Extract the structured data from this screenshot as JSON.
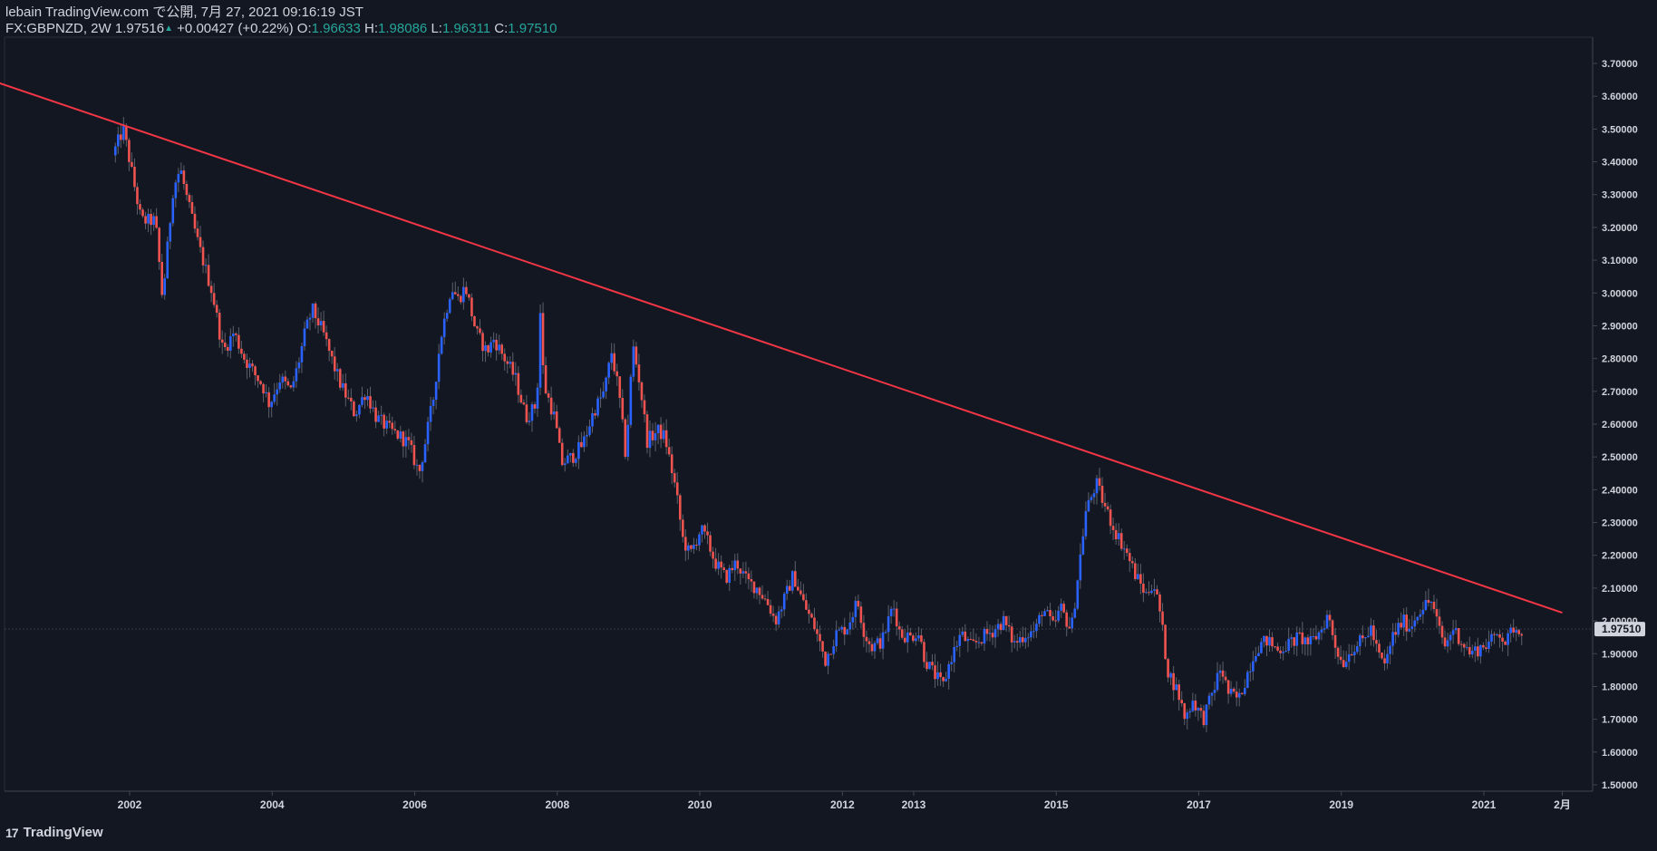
{
  "header": {
    "line1": "lebain TradingView.com で公開, 7月 27, 2021 09:16:19 JST",
    "symbol": "FX:GBPNZD, 2W",
    "price": "1.97516",
    "up_arrow": "▲",
    "change": "+0.00427 (+0.22%)",
    "o_label": "O:",
    "o_value": "1.96633",
    "h_label": "H:",
    "h_value": "1.98086",
    "l_label": "L:",
    "l_value": "1.96311",
    "c_label": "C:",
    "c_value": "1.97510"
  },
  "logo": {
    "mark": "17",
    "text": "TradingView"
  },
  "colors": {
    "background": "#131722",
    "up": "#2962ff",
    "down": "#ef5350",
    "trendline": "#f23645",
    "text": "#d1d4dc",
    "price_tag_bg": "#d1d4dc"
  },
  "chart_data": {
    "type": "candlestick",
    "symbol": "FX:GBPNZD",
    "interval": "2W",
    "ylim": [
      1.45,
      3.78
    ],
    "y_ticks": [
      "3.70000",
      "3.60000",
      "3.50000",
      "3.40000",
      "3.30000",
      "3.20000",
      "3.10000",
      "3.00000",
      "2.90000",
      "2.80000",
      "2.70000",
      "2.60000",
      "2.50000",
      "2.40000",
      "2.30000",
      "2.20000",
      "2.10000",
      "2.00000",
      "1.90000",
      "1.80000",
      "1.70000",
      "1.60000",
      "1.50000"
    ],
    "x_ticks": [
      {
        "label": "2002",
        "year": 2002.0
      },
      {
        "label": "2004",
        "year": 2004.0
      },
      {
        "label": "2006",
        "year": 2006.0
      },
      {
        "label": "2008",
        "year": 2008.0
      },
      {
        "label": "2010",
        "year": 2010.0
      },
      {
        "label": "2012",
        "year": 2012.0
      },
      {
        "label": "2013",
        "year": 2013.0
      },
      {
        "label": "2015",
        "year": 2015.0
      },
      {
        "label": "2017",
        "year": 2017.0
      },
      {
        "label": "2019",
        "year": 2019.0
      },
      {
        "label": "2021",
        "year": 2021.0
      },
      {
        "label": "2月",
        "year": 2022.1
      }
    ],
    "last_price": "1.97510",
    "last_price_value": 1.9751,
    "trendline": {
      "from": {
        "year": 1999.9,
        "price": 3.66
      },
      "to": {
        "year": 2022.1,
        "price": 2.025
      }
    },
    "price_path": [
      {
        "year": 2001.8,
        "price": 3.42
      },
      {
        "year": 2001.95,
        "price": 3.5
      },
      {
        "year": 2002.05,
        "price": 3.39
      },
      {
        "year": 2002.2,
        "price": 3.22
      },
      {
        "year": 2002.4,
        "price": 3.22
      },
      {
        "year": 2002.5,
        "price": 2.98
      },
      {
        "year": 2002.65,
        "price": 3.32
      },
      {
        "year": 2002.75,
        "price": 3.38
      },
      {
        "year": 2002.85,
        "price": 3.28
      },
      {
        "year": 2003.0,
        "price": 3.15
      },
      {
        "year": 2003.2,
        "price": 3.0
      },
      {
        "year": 2003.35,
        "price": 2.82
      },
      {
        "year": 2003.5,
        "price": 2.88
      },
      {
        "year": 2003.65,
        "price": 2.8
      },
      {
        "year": 2003.8,
        "price": 2.75
      },
      {
        "year": 2003.9,
        "price": 2.72
      },
      {
        "year": 2004.0,
        "price": 2.66
      },
      {
        "year": 2004.15,
        "price": 2.74
      },
      {
        "year": 2004.3,
        "price": 2.7
      },
      {
        "year": 2004.4,
        "price": 2.78
      },
      {
        "year": 2004.5,
        "price": 2.88
      },
      {
        "year": 2004.6,
        "price": 2.95
      },
      {
        "year": 2004.75,
        "price": 2.88
      },
      {
        "year": 2004.9,
        "price": 2.78
      },
      {
        "year": 2005.0,
        "price": 2.72
      },
      {
        "year": 2005.2,
        "price": 2.63
      },
      {
        "year": 2005.35,
        "price": 2.7
      },
      {
        "year": 2005.5,
        "price": 2.62
      },
      {
        "year": 2005.7,
        "price": 2.58
      },
      {
        "year": 2005.85,
        "price": 2.56
      },
      {
        "year": 2005.95,
        "price": 2.54
      },
      {
        "year": 2006.05,
        "price": 2.48
      },
      {
        "year": 2006.1,
        "price": 2.45
      },
      {
        "year": 2006.2,
        "price": 2.56
      },
      {
        "year": 2006.3,
        "price": 2.68
      },
      {
        "year": 2006.4,
        "price": 2.86
      },
      {
        "year": 2006.55,
        "price": 3.02
      },
      {
        "year": 2006.65,
        "price": 2.98
      },
      {
        "year": 2006.75,
        "price": 3.02
      },
      {
        "year": 2006.9,
        "price": 2.88
      },
      {
        "year": 2007.05,
        "price": 2.82
      },
      {
        "year": 2007.15,
        "price": 2.86
      },
      {
        "year": 2007.3,
        "price": 2.8
      },
      {
        "year": 2007.45,
        "price": 2.74
      },
      {
        "year": 2007.6,
        "price": 2.62
      },
      {
        "year": 2007.75,
        "price": 2.66
      },
      {
        "year": 2007.8,
        "price": 2.94
      },
      {
        "year": 2007.85,
        "price": 2.72
      },
      {
        "year": 2008.0,
        "price": 2.62
      },
      {
        "year": 2008.1,
        "price": 2.48
      },
      {
        "year": 2008.25,
        "price": 2.5
      },
      {
        "year": 2008.4,
        "price": 2.54
      },
      {
        "year": 2008.55,
        "price": 2.64
      },
      {
        "year": 2008.7,
        "price": 2.7
      },
      {
        "year": 2008.8,
        "price": 2.82
      },
      {
        "year": 2008.9,
        "price": 2.7
      },
      {
        "year": 2009.0,
        "price": 2.5
      },
      {
        "year": 2009.1,
        "price": 2.84
      },
      {
        "year": 2009.2,
        "price": 2.72
      },
      {
        "year": 2009.3,
        "price": 2.55
      },
      {
        "year": 2009.45,
        "price": 2.58
      },
      {
        "year": 2009.55,
        "price": 2.56
      },
      {
        "year": 2009.7,
        "price": 2.4
      },
      {
        "year": 2009.8,
        "price": 2.25
      },
      {
        "year": 2009.9,
        "price": 2.2
      },
      {
        "year": 2010.05,
        "price": 2.28
      },
      {
        "year": 2010.15,
        "price": 2.24
      },
      {
        "year": 2010.25,
        "price": 2.18
      },
      {
        "year": 2010.4,
        "price": 2.13
      },
      {
        "year": 2010.55,
        "price": 2.18
      },
      {
        "year": 2010.7,
        "price": 2.12
      },
      {
        "year": 2010.85,
        "price": 2.1
      },
      {
        "year": 2011.0,
        "price": 2.05
      },
      {
        "year": 2011.1,
        "price": 2.0
      },
      {
        "year": 2011.25,
        "price": 2.08
      },
      {
        "year": 2011.35,
        "price": 2.14
      },
      {
        "year": 2011.5,
        "price": 2.05
      },
      {
        "year": 2011.65,
        "price": 1.98
      },
      {
        "year": 2011.8,
        "price": 1.88
      },
      {
        "year": 2011.95,
        "price": 1.96
      },
      {
        "year": 2012.1,
        "price": 1.98
      },
      {
        "year": 2012.25,
        "price": 2.06
      },
      {
        "year": 2012.35,
        "price": 1.96
      },
      {
        "year": 2012.45,
        "price": 1.92
      },
      {
        "year": 2012.6,
        "price": 1.94
      },
      {
        "year": 2012.75,
        "price": 2.05
      },
      {
        "year": 2012.85,
        "price": 1.96
      },
      {
        "year": 2013.0,
        "price": 1.95
      },
      {
        "year": 2013.1,
        "price": 1.97
      },
      {
        "year": 2013.2,
        "price": 1.88
      },
      {
        "year": 2013.35,
        "price": 1.83
      },
      {
        "year": 2013.45,
        "price": 1.8
      },
      {
        "year": 2013.55,
        "price": 1.88
      },
      {
        "year": 2013.7,
        "price": 1.96
      },
      {
        "year": 2013.85,
        "price": 1.92
      },
      {
        "year": 2014.0,
        "price": 1.95
      },
      {
        "year": 2014.15,
        "price": 1.97
      },
      {
        "year": 2014.3,
        "price": 2.0
      },
      {
        "year": 2014.45,
        "price": 1.93
      },
      {
        "year": 2014.6,
        "price": 1.96
      },
      {
        "year": 2014.75,
        "price": 1.97
      },
      {
        "year": 2014.85,
        "price": 2.04
      },
      {
        "year": 2015.0,
        "price": 1.98
      },
      {
        "year": 2015.1,
        "price": 2.04
      },
      {
        "year": 2015.25,
        "price": 1.97
      },
      {
        "year": 2015.35,
        "price": 2.15
      },
      {
        "year": 2015.45,
        "price": 2.33
      },
      {
        "year": 2015.6,
        "price": 2.42
      },
      {
        "year": 2015.7,
        "price": 2.36
      },
      {
        "year": 2015.85,
        "price": 2.28
      },
      {
        "year": 2016.0,
        "price": 2.22
      },
      {
        "year": 2016.15,
        "price": 2.14
      },
      {
        "year": 2016.3,
        "price": 2.08
      },
      {
        "year": 2016.4,
        "price": 2.12
      },
      {
        "year": 2016.5,
        "price": 2.02
      },
      {
        "year": 2016.6,
        "price": 1.85
      },
      {
        "year": 2016.75,
        "price": 1.78
      },
      {
        "year": 2016.85,
        "price": 1.7
      },
      {
        "year": 2016.95,
        "price": 1.76
      },
      {
        "year": 2017.1,
        "price": 1.7
      },
      {
        "year": 2017.2,
        "price": 1.76
      },
      {
        "year": 2017.35,
        "price": 1.86
      },
      {
        "year": 2017.45,
        "price": 1.78
      },
      {
        "year": 2017.6,
        "price": 1.76
      },
      {
        "year": 2017.75,
        "price": 1.86
      },
      {
        "year": 2017.85,
        "price": 1.92
      },
      {
        "year": 2018.0,
        "price": 1.94
      },
      {
        "year": 2018.15,
        "price": 1.91
      },
      {
        "year": 2018.3,
        "price": 1.93
      },
      {
        "year": 2018.45,
        "price": 1.95
      },
      {
        "year": 2018.6,
        "price": 1.93
      },
      {
        "year": 2018.75,
        "price": 1.97
      },
      {
        "year": 2018.85,
        "price": 2.02
      },
      {
        "year": 2018.95,
        "price": 1.93
      },
      {
        "year": 2019.05,
        "price": 1.87
      },
      {
        "year": 2019.2,
        "price": 1.92
      },
      {
        "year": 2019.35,
        "price": 1.94
      },
      {
        "year": 2019.45,
        "price": 1.98
      },
      {
        "year": 2019.55,
        "price": 1.9
      },
      {
        "year": 2019.65,
        "price": 1.86
      },
      {
        "year": 2019.75,
        "price": 1.95
      },
      {
        "year": 2019.9,
        "price": 2.0
      },
      {
        "year": 2020.0,
        "price": 1.98
      },
      {
        "year": 2020.15,
        "price": 2.04
      },
      {
        "year": 2020.3,
        "price": 2.06
      },
      {
        "year": 2020.4,
        "price": 1.98
      },
      {
        "year": 2020.5,
        "price": 1.92
      },
      {
        "year": 2020.6,
        "price": 1.98
      },
      {
        "year": 2020.75,
        "price": 1.93
      },
      {
        "year": 2020.85,
        "price": 1.9
      },
      {
        "year": 2021.0,
        "price": 1.92
      },
      {
        "year": 2021.15,
        "price": 1.94
      },
      {
        "year": 2021.25,
        "price": 1.97
      },
      {
        "year": 2021.35,
        "price": 1.93
      },
      {
        "year": 2021.45,
        "price": 1.98
      },
      {
        "year": 2021.55,
        "price": 1.975
      }
    ]
  }
}
